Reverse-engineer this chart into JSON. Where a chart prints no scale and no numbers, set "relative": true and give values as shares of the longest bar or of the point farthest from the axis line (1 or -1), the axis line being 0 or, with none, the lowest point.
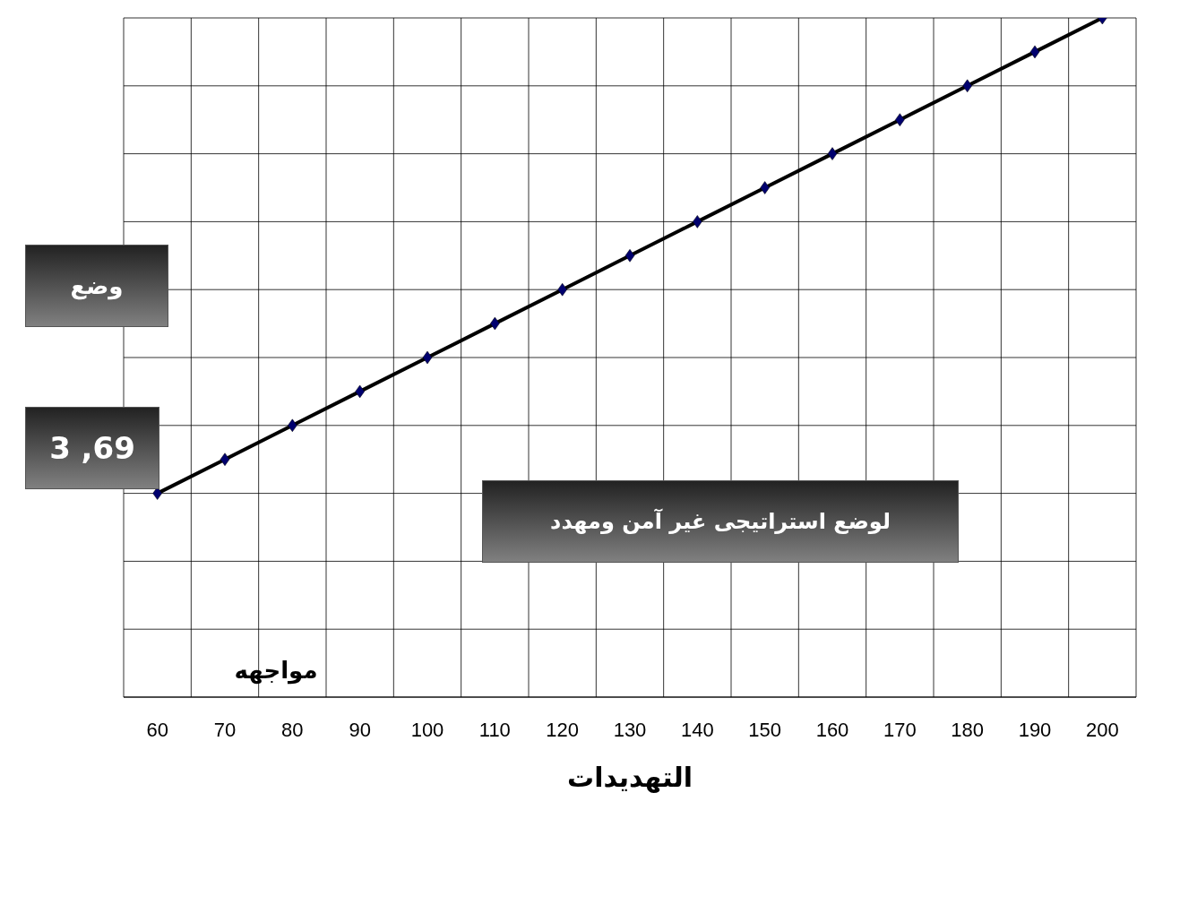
{
  "chart_data": {
    "type": "line",
    "xlabel": "التهديدات",
    "relative": true,
    "categories": [
      "60",
      "70",
      "80",
      "90",
      "100",
      "110",
      "120",
      "130",
      "140",
      "150",
      "160",
      "170",
      "180",
      "190",
      "200"
    ],
    "series": [
      {
        "color": "#000000",
        "values": [
          0.3,
          0.35,
          0.4,
          0.45,
          0.5,
          0.55,
          0.6,
          0.65,
          0.7,
          0.75,
          0.8,
          0.85,
          0.9,
          0.95,
          1.0
        ]
      }
    ],
    "annotations": [
      "وضع",
      "3 ,69",
      "لوضع استراتيجى غير آمن ومهدد",
      "مواجهه"
    ],
    "grid": true,
    "marker": "diamond",
    "line_style": "solid"
  }
}
